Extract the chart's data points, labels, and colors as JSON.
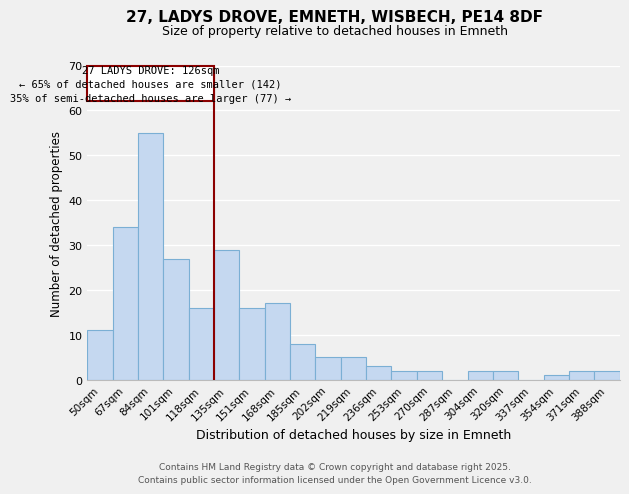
{
  "title1": "27, LADYS DROVE, EMNETH, WISBECH, PE14 8DF",
  "title2": "Size of property relative to detached houses in Emneth",
  "xlabel": "Distribution of detached houses by size in Emneth",
  "ylabel": "Number of detached properties",
  "categories": [
    "50sqm",
    "67sqm",
    "84sqm",
    "101sqm",
    "118sqm",
    "135sqm",
    "151sqm",
    "168sqm",
    "185sqm",
    "202sqm",
    "219sqm",
    "236sqm",
    "253sqm",
    "270sqm",
    "287sqm",
    "304sqm",
    "320sqm",
    "337sqm",
    "354sqm",
    "371sqm",
    "388sqm"
  ],
  "values": [
    11,
    34,
    55,
    27,
    16,
    29,
    16,
    17,
    8,
    5,
    5,
    3,
    2,
    2,
    0,
    2,
    2,
    0,
    1,
    2,
    2
  ],
  "bar_color": "#c5d8f0",
  "bar_edge_color": "#7bafd4",
  "highlight_bar_index": 5,
  "highlight_line_color": "#8b0000",
  "annotation_box_edge_color": "#8b0000",
  "annotation_line1": "27 LADYS DROVE: 126sqm",
  "annotation_line2": "← 65% of detached houses are smaller (142)",
  "annotation_line3": "35% of semi-detached houses are larger (77) →",
  "ylim": [
    0,
    70
  ],
  "yticks": [
    0,
    10,
    20,
    30,
    40,
    50,
    60,
    70
  ],
  "footer1": "Contains HM Land Registry data © Crown copyright and database right 2025.",
  "footer2": "Contains public sector information licensed under the Open Government Licence v3.0.",
  "bg_color": "#f0f0f0",
  "grid_color": "#ffffff"
}
